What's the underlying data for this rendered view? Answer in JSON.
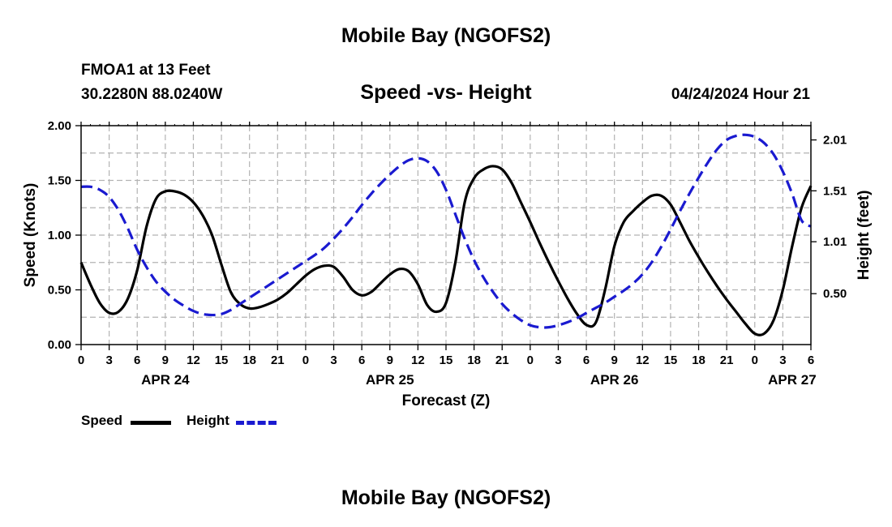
{
  "header": {
    "title": "Mobile Bay (NGOFS2)",
    "station": "FMOA1 at 13 Feet",
    "coords": "30.2280N  88.0240W",
    "subtitle": "Speed -vs- Height",
    "datetime": "04/24/2024 Hour 21"
  },
  "footer": {
    "title": "Mobile Bay (NGOFS2)"
  },
  "legend": {
    "speed_label": "Speed",
    "height_label": "Height",
    "speed_color": "#000000",
    "height_color": "#1a1ad0"
  },
  "chart_data": {
    "type": "line",
    "xlabel": "Forecast (Z)",
    "ylabel": "Speed (Knots)",
    "y2label": "Height (feet)",
    "x_range_hours": [
      0,
      78
    ],
    "ylim": [
      0,
      2.0
    ],
    "y2lim": [
      0.0,
      2.15
    ],
    "grid": true,
    "x_tick_hours": [
      0,
      3,
      6,
      9,
      12,
      15,
      18,
      21,
      24,
      27,
      30,
      33,
      36,
      39,
      42,
      45,
      48,
      51,
      54,
      57,
      60,
      63,
      66,
      69,
      72,
      75,
      78
    ],
    "x_tick_labels": [
      "0",
      "3",
      "6",
      "9",
      "12",
      "15",
      "18",
      "21",
      "0",
      "3",
      "6",
      "9",
      "12",
      "15",
      "18",
      "21",
      "0",
      "3",
      "6",
      "9",
      "12",
      "15",
      "18",
      "21",
      "0",
      "3",
      "6"
    ],
    "date_labels": [
      {
        "hour": 9,
        "label": "APR 24"
      },
      {
        "hour": 33,
        "label": "APR 25"
      },
      {
        "hour": 57,
        "label": "APR 26"
      },
      {
        "hour": 76,
        "label": "APR 27"
      }
    ],
    "y_ticks": [
      0.0,
      0.5,
      1.0,
      1.5,
      2.0
    ],
    "y_tick_labels": [
      "0.00",
      "0.50",
      "1.00",
      "1.50",
      "2.00"
    ],
    "y2_ticks": [
      0.5,
      1.01,
      1.51,
      2.01
    ],
    "y2_tick_labels": [
      "0.50",
      "1.01",
      "1.51",
      "2.01"
    ],
    "series": [
      {
        "name": "Speed",
        "axis": "left",
        "style": "solid",
        "color": "#000000",
        "points": [
          [
            0,
            0.75
          ],
          [
            1,
            0.55
          ],
          [
            2,
            0.38
          ],
          [
            3,
            0.29
          ],
          [
            4,
            0.3
          ],
          [
            5,
            0.42
          ],
          [
            6,
            0.68
          ],
          [
            7,
            1.08
          ],
          [
            8,
            1.33
          ],
          [
            9,
            1.4
          ],
          [
            10,
            1.4
          ],
          [
            11,
            1.37
          ],
          [
            12,
            1.3
          ],
          [
            13,
            1.18
          ],
          [
            14,
            1.0
          ],
          [
            15,
            0.73
          ],
          [
            16,
            0.48
          ],
          [
            17,
            0.37
          ],
          [
            18,
            0.33
          ],
          [
            19,
            0.34
          ],
          [
            20,
            0.37
          ],
          [
            21,
            0.41
          ],
          [
            22,
            0.47
          ],
          [
            23,
            0.55
          ],
          [
            24,
            0.63
          ],
          [
            25,
            0.69
          ],
          [
            26,
            0.72
          ],
          [
            27,
            0.71
          ],
          [
            28,
            0.62
          ],
          [
            29,
            0.5
          ],
          [
            30,
            0.45
          ],
          [
            31,
            0.48
          ],
          [
            32,
            0.56
          ],
          [
            33,
            0.64
          ],
          [
            34,
            0.69
          ],
          [
            35,
            0.67
          ],
          [
            36,
            0.55
          ],
          [
            37,
            0.36
          ],
          [
            38,
            0.3
          ],
          [
            39,
            0.38
          ],
          [
            40,
            0.75
          ],
          [
            41,
            1.3
          ],
          [
            42,
            1.52
          ],
          [
            43,
            1.6
          ],
          [
            44,
            1.63
          ],
          [
            45,
            1.6
          ],
          [
            46,
            1.48
          ],
          [
            47,
            1.3
          ],
          [
            48,
            1.12
          ],
          [
            49,
            0.93
          ],
          [
            50,
            0.75
          ],
          [
            51,
            0.58
          ],
          [
            52,
            0.42
          ],
          [
            53,
            0.28
          ],
          [
            54,
            0.18
          ],
          [
            55,
            0.2
          ],
          [
            56,
            0.5
          ],
          [
            57,
            0.9
          ],
          [
            58,
            1.12
          ],
          [
            59,
            1.22
          ],
          [
            60,
            1.3
          ],
          [
            61,
            1.36
          ],
          [
            62,
            1.36
          ],
          [
            63,
            1.28
          ],
          [
            64,
            1.12
          ],
          [
            65,
            0.95
          ],
          [
            66,
            0.8
          ],
          [
            67,
            0.66
          ],
          [
            68,
            0.53
          ],
          [
            69,
            0.41
          ],
          [
            70,
            0.3
          ],
          [
            71,
            0.19
          ],
          [
            72,
            0.1
          ],
          [
            73,
            0.1
          ],
          [
            74,
            0.22
          ],
          [
            75,
            0.5
          ],
          [
            76,
            0.9
          ],
          [
            77,
            1.25
          ],
          [
            78,
            1.45
          ]
        ]
      },
      {
        "name": "Height",
        "axis": "right",
        "style": "dashed",
        "color": "#1a1ad0",
        "points": [
          [
            0,
            1.55
          ],
          [
            1,
            1.55
          ],
          [
            2,
            1.52
          ],
          [
            3,
            1.45
          ],
          [
            4,
            1.32
          ],
          [
            5,
            1.14
          ],
          [
            6,
            0.93
          ],
          [
            7,
            0.76
          ],
          [
            8,
            0.62
          ],
          [
            9,
            0.52
          ],
          [
            10,
            0.44
          ],
          [
            11,
            0.38
          ],
          [
            12,
            0.33
          ],
          [
            13,
            0.3
          ],
          [
            14,
            0.29
          ],
          [
            15,
            0.3
          ],
          [
            16,
            0.34
          ],
          [
            17,
            0.4
          ],
          [
            18,
            0.46
          ],
          [
            19,
            0.52
          ],
          [
            20,
            0.58
          ],
          [
            21,
            0.64
          ],
          [
            22,
            0.7
          ],
          [
            23,
            0.76
          ],
          [
            24,
            0.82
          ],
          [
            25,
            0.88
          ],
          [
            26,
            0.95
          ],
          [
            27,
            1.04
          ],
          [
            28,
            1.14
          ],
          [
            29,
            1.25
          ],
          [
            30,
            1.37
          ],
          [
            31,
            1.48
          ],
          [
            32,
            1.58
          ],
          [
            33,
            1.67
          ],
          [
            34,
            1.75
          ],
          [
            35,
            1.81
          ],
          [
            36,
            1.83
          ],
          [
            37,
            1.8
          ],
          [
            38,
            1.7
          ],
          [
            39,
            1.52
          ],
          [
            40,
            1.28
          ],
          [
            41,
            1.04
          ],
          [
            42,
            0.83
          ],
          [
            43,
            0.66
          ],
          [
            44,
            0.52
          ],
          [
            45,
            0.4
          ],
          [
            46,
            0.31
          ],
          [
            47,
            0.24
          ],
          [
            48,
            0.19
          ],
          [
            49,
            0.17
          ],
          [
            50,
            0.17
          ],
          [
            51,
            0.19
          ],
          [
            52,
            0.22
          ],
          [
            53,
            0.26
          ],
          [
            54,
            0.31
          ],
          [
            55,
            0.36
          ],
          [
            56,
            0.41
          ],
          [
            57,
            0.47
          ],
          [
            58,
            0.53
          ],
          [
            59,
            0.6
          ],
          [
            60,
            0.69
          ],
          [
            61,
            0.81
          ],
          [
            62,
            0.96
          ],
          [
            63,
            1.13
          ],
          [
            64,
            1.31
          ],
          [
            65,
            1.48
          ],
          [
            66,
            1.64
          ],
          [
            67,
            1.79
          ],
          [
            68,
            1.92
          ],
          [
            69,
            2.01
          ],
          [
            70,
            2.05
          ],
          [
            71,
            2.06
          ],
          [
            72,
            2.04
          ],
          [
            73,
            1.98
          ],
          [
            74,
            1.87
          ],
          [
            75,
            1.7
          ],
          [
            76,
            1.48
          ],
          [
            77,
            1.22
          ],
          [
            78,
            1.16
          ]
        ]
      }
    ]
  }
}
